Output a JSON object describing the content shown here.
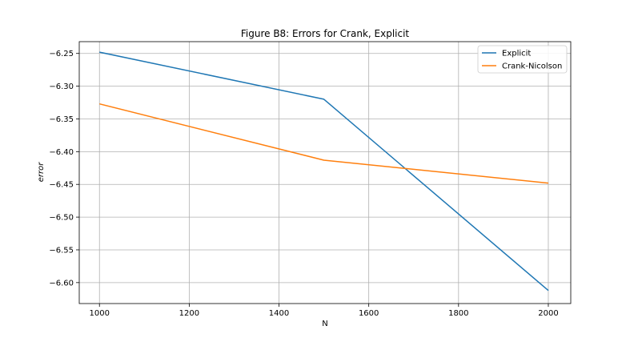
{
  "chart_data": {
    "type": "line",
    "title": "Figure B8: Errors for Crank, Explicit",
    "xlabel": "N",
    "ylabel": "error",
    "xlim": [
      955,
      2050
    ],
    "ylim": [
      -6.632,
      -6.232
    ],
    "xticks": [
      1000,
      1200,
      1400,
      1600,
      1800,
      2000
    ],
    "yticks": [
      -6.25,
      -6.3,
      -6.35,
      -6.4,
      -6.45,
      -6.5,
      -6.55,
      -6.6
    ],
    "ytick_labels": [
      "−6.25",
      "−6.30",
      "−6.35",
      "−6.40",
      "−6.45",
      "−6.50",
      "−6.55",
      "−6.60"
    ],
    "grid": true,
    "legend_position": "top-right",
    "series": [
      {
        "name": "Explicit",
        "color": "#1f77b4",
        "x": [
          1000,
          1500,
          2000
        ],
        "y": [
          -6.248,
          -6.32,
          -6.612
        ]
      },
      {
        "name": "Crank-Nicolson",
        "color": "#ff7f0e",
        "x": [
          1000,
          1500,
          2000
        ],
        "y": [
          -6.327,
          -6.413,
          -6.448
        ]
      }
    ]
  }
}
